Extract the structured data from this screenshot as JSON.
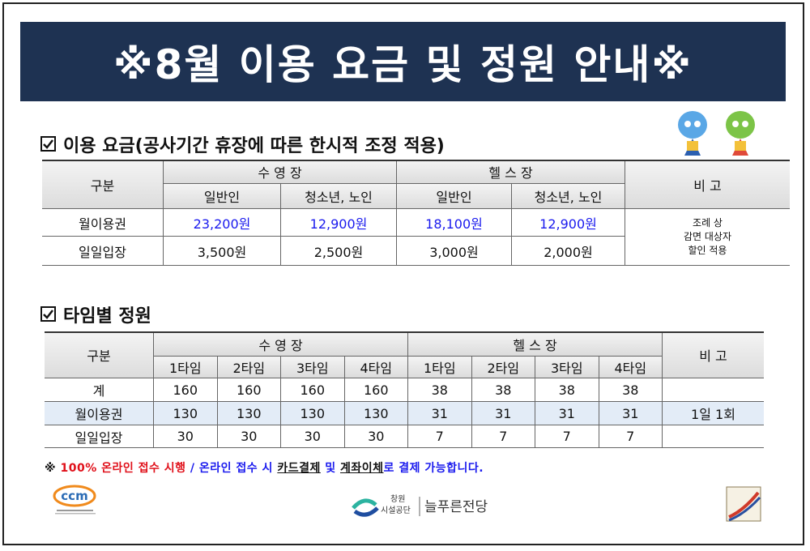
{
  "title": "※8월 이용 요금 및 정원 안내※",
  "fee_section": {
    "heading": "이용 요금(공사기간 휴장에 따른 한시적 조정 적용)"
  },
  "fee_table": {
    "header": [
      "구분",
      "수 영 장",
      "헬 스 장",
      "비 고"
    ],
    "subheader": [
      "일반인",
      "청소년, 노인",
      "일반인",
      "청소년, 노인"
    ],
    "rows": [
      [
        "월이용권",
        "23,200원",
        "12,900원",
        "18,100원",
        "12,900원"
      ],
      [
        "일일입장",
        "3,500원",
        "2,500원",
        "3,000원",
        "2,000원"
      ]
    ],
    "note": [
      "조례 상",
      "감면 대상자",
      "할인 적용"
    ]
  },
  "time_section": {
    "heading": "타임별 정원"
  },
  "time_table": {
    "header": [
      "구분",
      "수 영 장",
      "헬 스 장",
      "비 고"
    ],
    "subheader": [
      "1타임",
      "2타임",
      "3타임",
      "4타임",
      "1타임",
      "2타임",
      "3타임",
      "4타임"
    ],
    "rows": [
      [
        "계",
        160,
        160,
        160,
        160,
        38,
        38,
        38,
        38
      ],
      [
        "월이용권",
        130,
        130,
        130,
        130,
        31,
        31,
        31,
        31
      ],
      [
        "일일입장",
        30,
        30,
        30,
        30,
        7,
        7,
        7,
        7
      ]
    ],
    "note": "1일 1회"
  },
  "notice": [
    "※",
    "100% 온라인 접수 시행",
    "/ 온라인 접수 시",
    "카드결제",
    "및",
    "계좌이체",
    "로 결제 가능합니다."
  ],
  "logos": {
    "ccm": "ccm",
    "org_top": "창원",
    "org_bottom": "시설공단",
    "venue": "늘푸른전당"
  }
}
